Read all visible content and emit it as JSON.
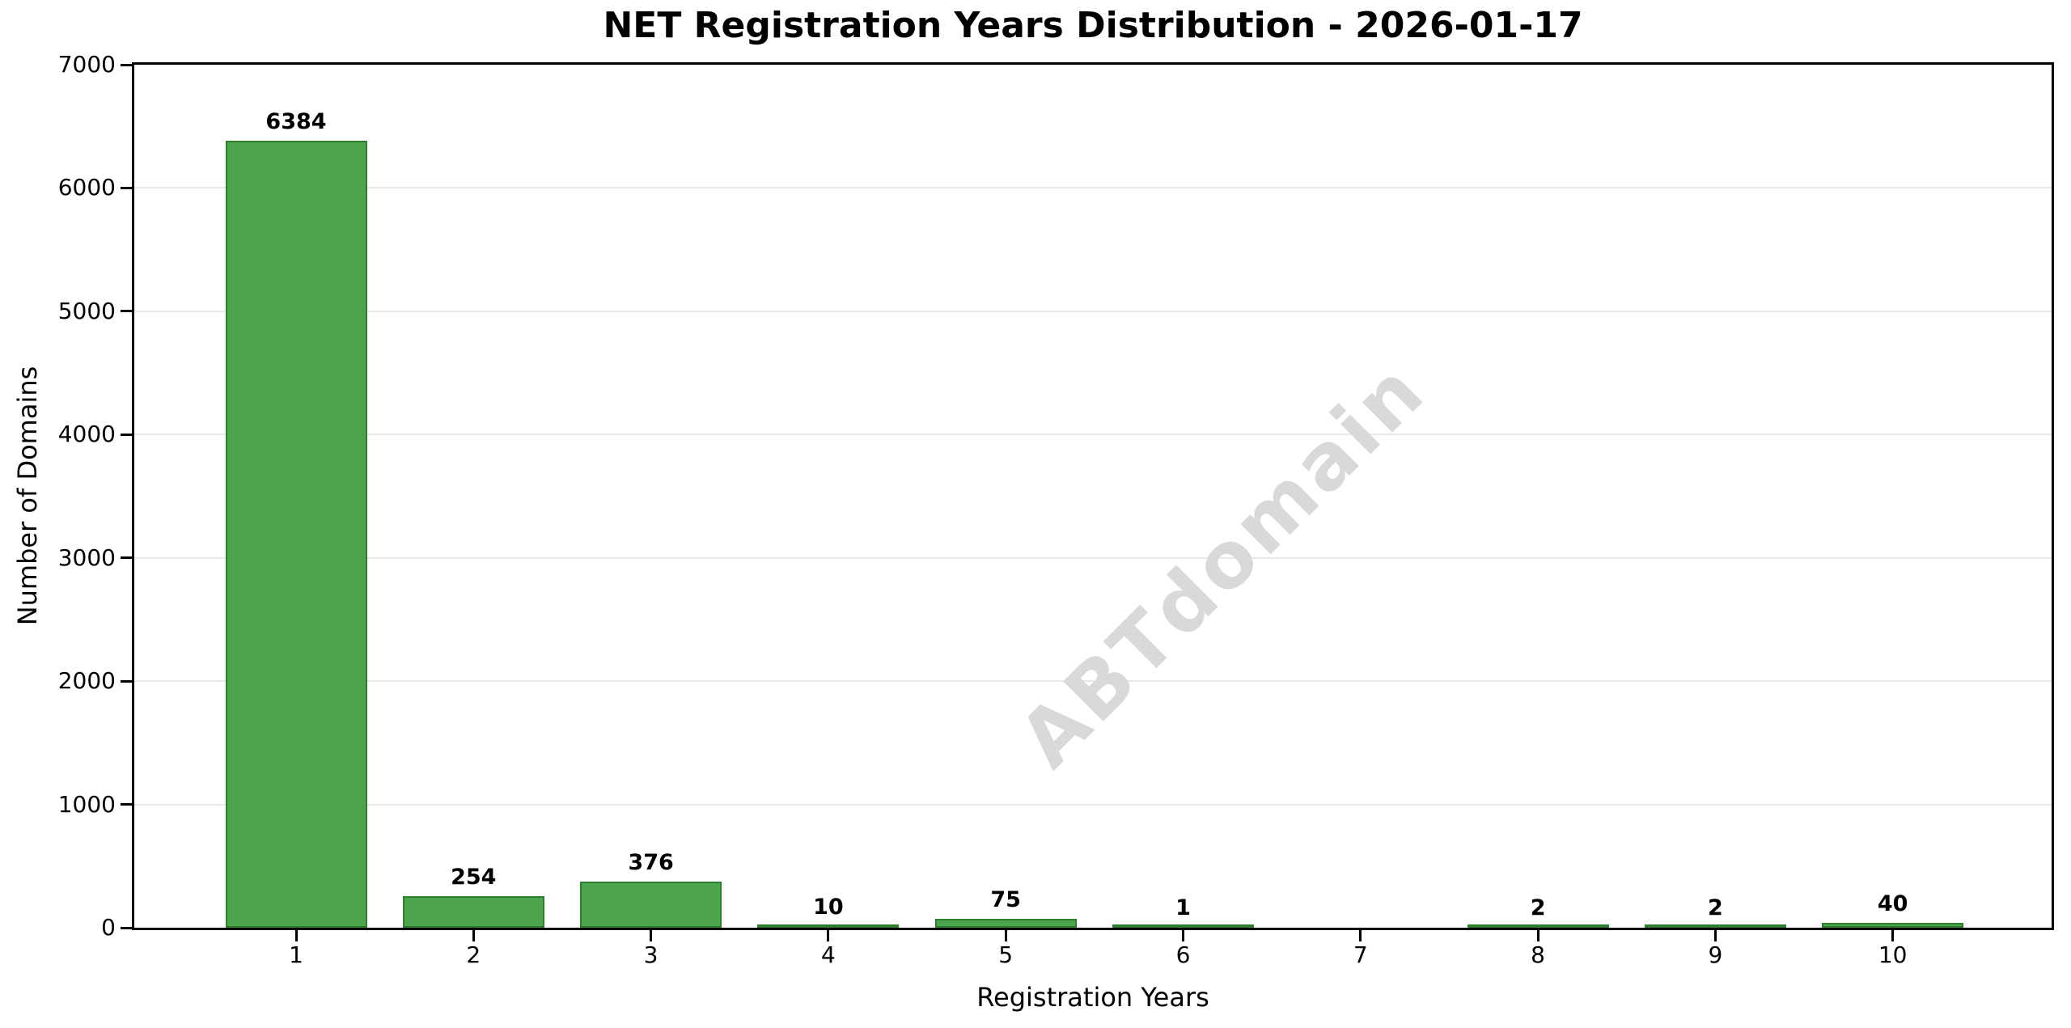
{
  "chart_data": {
    "type": "bar",
    "title": "NET Registration Years Distribution - 2026-01-17",
    "xlabel": "Registration Years",
    "ylabel": "Number of Domains",
    "categories": [
      1,
      2,
      3,
      4,
      5,
      6,
      7,
      8,
      9,
      10
    ],
    "values": [
      6384,
      254,
      376,
      10,
      75,
      1,
      0,
      2,
      2,
      40
    ],
    "bar_value_labels": [
      "6384",
      "254",
      "376",
      "10",
      "75",
      "1",
      "",
      "2",
      "2",
      "40"
    ],
    "ylim": [
      0,
      7000
    ],
    "yticks": [
      0,
      1000,
      2000,
      3000,
      4000,
      5000,
      6000,
      7000
    ],
    "grid": true,
    "legend": "none",
    "watermark": "ABTdomain",
    "colors": {
      "bar_fill": "#4DA64D",
      "bar_edge": "#2F7D2F",
      "gridline": "#E9E9E9",
      "watermark": "#D9D9D9",
      "axis": "#000000",
      "text": "#000000",
      "background": "#FFFFFF"
    }
  }
}
